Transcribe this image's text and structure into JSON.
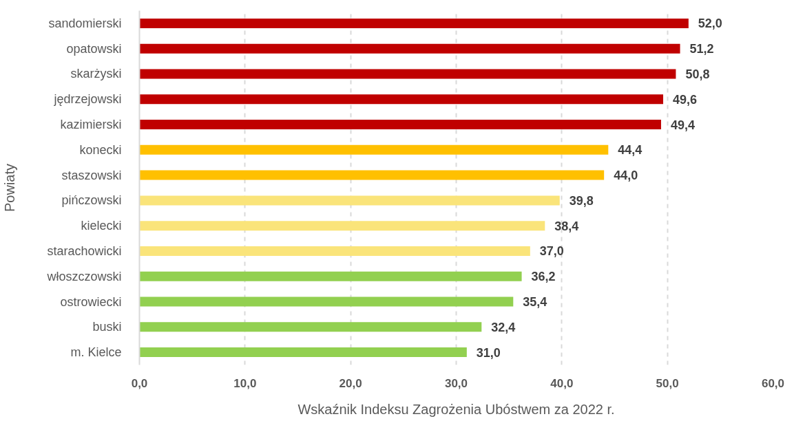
{
  "chart_data": {
    "type": "bar",
    "orientation": "horizontal",
    "categories": [
      "sandomierski",
      "opatowski",
      "skarżyski",
      "jędrzejowski",
      "kazimierski",
      "konecki",
      "staszowski",
      "pińczowski",
      "kielecki",
      "starachowicki",
      "włoszczowski",
      "ostrowiecki",
      "buski",
      "m. Kielce"
    ],
    "values": [
      52.0,
      51.2,
      50.8,
      49.6,
      49.4,
      44.4,
      44.0,
      39.8,
      38.4,
      37.0,
      36.2,
      35.4,
      32.4,
      31.0
    ],
    "value_labels": [
      "52,0",
      "51,2",
      "50,8",
      "49,6",
      "49,4",
      "44,4",
      "44,0",
      "39,8",
      "38,4",
      "37,0",
      "36,2",
      "35,4",
      "32,4",
      "31,0"
    ],
    "colors": [
      "#c00000",
      "#c00000",
      "#c00000",
      "#c00000",
      "#c00000",
      "#ffc000",
      "#ffc000",
      "#fae47a",
      "#fae47a",
      "#fae47a",
      "#92d050",
      "#92d050",
      "#92d050",
      "#92d050"
    ],
    "xlim": [
      0,
      60
    ],
    "xticks": [
      {
        "value": 0,
        "label": "0,0"
      },
      {
        "value": 10,
        "label": "10,0"
      },
      {
        "value": 20,
        "label": "20,0"
      },
      {
        "value": 30,
        "label": "30,0"
      },
      {
        "value": 40,
        "label": "40,0"
      },
      {
        "value": 50,
        "label": "50,0"
      },
      {
        "value": 60,
        "label": "60,0"
      }
    ],
    "xlabel": "Wskaźnik Indeksu Zagrożenia Ubóstwem za 2022 r.",
    "ylabel": "Powiaty",
    "grid": "x"
  }
}
